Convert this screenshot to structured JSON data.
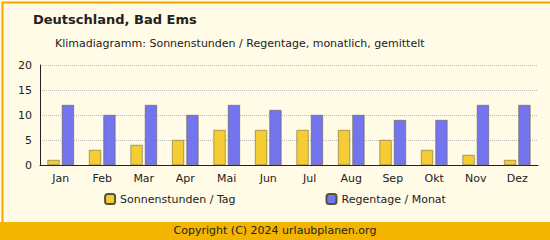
{
  "chart_data": {
    "type": "bar",
    "title": "Deutschland, Bad Ems",
    "subtitle": "Klimadiagramm: Sonnenstunden / Regentage, monatlich, gemittelt",
    "footer": "Copyright (C) 2024 urlaubplanen.org",
    "categories": [
      "Jan",
      "Feb",
      "Mar",
      "Apr",
      "Mai",
      "Jun",
      "Jul",
      "Aug",
      "Sep",
      "Okt",
      "Nov",
      "Dez"
    ],
    "series": [
      {
        "name": "Sonnenstunden / Tag",
        "color": "#f5cc33",
        "values": [
          1,
          3,
          4,
          5,
          7,
          7,
          7,
          7,
          5,
          3,
          2,
          1
        ]
      },
      {
        "name": "Regentage / Monat",
        "color": "#7474ee",
        "values": [
          12,
          10,
          12,
          10,
          12,
          11,
          10,
          10,
          9,
          9,
          12,
          12
        ]
      }
    ],
    "ylim": [
      0,
      20
    ],
    "yticks": [
      0,
      5,
      10,
      15,
      20
    ],
    "grid": true,
    "legend": "bottom"
  }
}
